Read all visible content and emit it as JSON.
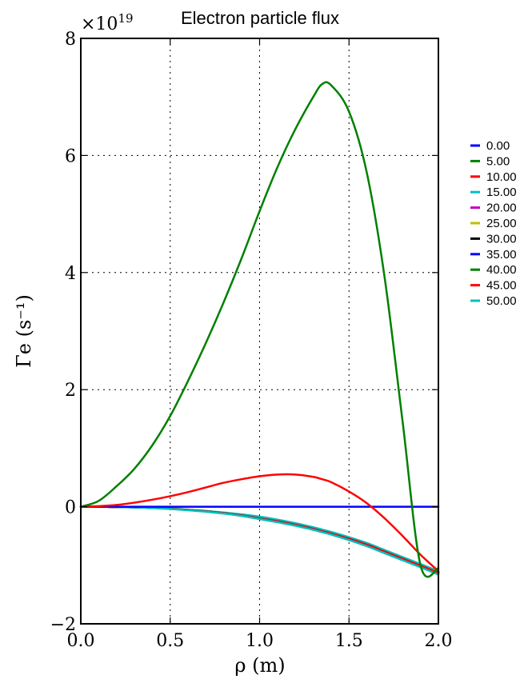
{
  "chart_data": {
    "type": "line",
    "title": "Electron particle flux",
    "xlabel": "ρ (m)",
    "ylabel": "Γe (s⁻¹)",
    "y_scale_factor": "×10",
    "y_scale_exponent": "19",
    "xlim": [
      0,
      2
    ],
    "ylim": [
      -2,
      8
    ],
    "x_ticks": [
      "0.0",
      "0.5",
      "1.0",
      "1.5",
      "2.0"
    ],
    "y_ticks": [
      "−2",
      "0",
      "2",
      "4",
      "6",
      "8"
    ],
    "grid": true,
    "legend_position": "outside-right",
    "x": [
      0,
      0.1,
      0.2,
      0.3,
      0.4,
      0.5,
      0.6,
      0.7,
      0.8,
      0.9,
      1.0,
      1.1,
      1.2,
      1.3,
      1.35,
      1.4,
      1.5,
      1.6,
      1.7,
      1.8,
      1.9,
      2.0
    ],
    "series": [
      {
        "name": "0.00",
        "color": "#0000ff",
        "values": [
          0,
          0,
          0,
          0,
          0,
          0,
          0,
          0,
          0,
          0,
          0,
          0,
          0,
          0,
          0,
          0,
          0,
          0,
          0,
          0,
          0,
          0
        ]
      },
      {
        "name": "5.00",
        "color": "#008000",
        "values": [
          0,
          0.1,
          0.35,
          0.65,
          1.05,
          1.55,
          2.15,
          2.8,
          3.5,
          4.25,
          5.05,
          5.8,
          6.45,
          7.0,
          7.22,
          7.2,
          6.75,
          5.7,
          3.9,
          1.45,
          -1.0,
          -1.05
        ]
      },
      {
        "name": "10.00",
        "color": "#ff0000",
        "values": [
          0,
          0.01,
          0.03,
          0.07,
          0.12,
          0.18,
          0.25,
          0.33,
          0.41,
          0.47,
          0.52,
          0.55,
          0.55,
          0.51,
          0.47,
          0.42,
          0.26,
          0.06,
          -0.2,
          -0.5,
          -0.82,
          -1.1
        ]
      },
      {
        "name": "15.00",
        "color": "#00bfbf",
        "values": [
          0,
          0,
          -0.005,
          -0.01,
          -0.02,
          -0.03,
          -0.05,
          -0.07,
          -0.1,
          -0.13,
          -0.17,
          -0.22,
          -0.28,
          -0.35,
          -0.39,
          -0.43,
          -0.52,
          -0.62,
          -0.74,
          -0.86,
          -0.98,
          -1.1
        ]
      },
      {
        "name": "20.00",
        "color": "#bf00bf",
        "values": [
          0,
          0,
          -0.005,
          -0.01,
          -0.02,
          -0.035,
          -0.055,
          -0.08,
          -0.11,
          -0.15,
          -0.2,
          -0.25,
          -0.31,
          -0.38,
          -0.42,
          -0.46,
          -0.55,
          -0.65,
          -0.77,
          -0.89,
          -1.01,
          -1.12
        ]
      },
      {
        "name": "25.00",
        "color": "#bfbf00",
        "values": [
          0,
          0,
          -0.005,
          -0.01,
          -0.02,
          -0.035,
          -0.055,
          -0.08,
          -0.11,
          -0.15,
          -0.2,
          -0.25,
          -0.31,
          -0.38,
          -0.42,
          -0.46,
          -0.55,
          -0.65,
          -0.77,
          -0.89,
          -1.01,
          -1.12
        ]
      },
      {
        "name": "30.00",
        "color": "#000000",
        "values": [
          0,
          0,
          -0.005,
          -0.01,
          -0.02,
          -0.035,
          -0.055,
          -0.08,
          -0.11,
          -0.15,
          -0.2,
          -0.25,
          -0.31,
          -0.38,
          -0.42,
          -0.46,
          -0.55,
          -0.65,
          -0.77,
          -0.89,
          -1.01,
          -1.13
        ]
      },
      {
        "name": "35.00",
        "color": "#0000ff",
        "values": [
          0,
          0,
          -0.005,
          -0.01,
          -0.02,
          -0.035,
          -0.055,
          -0.08,
          -0.11,
          -0.15,
          -0.2,
          -0.25,
          -0.31,
          -0.38,
          -0.42,
          -0.46,
          -0.55,
          -0.65,
          -0.77,
          -0.89,
          -1.01,
          -1.13
        ]
      },
      {
        "name": "40.00",
        "color": "#008000",
        "values": [
          0,
          0,
          -0.005,
          -0.01,
          -0.02,
          -0.035,
          -0.055,
          -0.08,
          -0.11,
          -0.15,
          -0.2,
          -0.25,
          -0.31,
          -0.38,
          -0.42,
          -0.46,
          -0.55,
          -0.65,
          -0.77,
          -0.89,
          -1.01,
          -1.13
        ]
      },
      {
        "name": "45.00",
        "color": "#ff0000",
        "values": [
          0,
          0,
          -0.005,
          -0.01,
          -0.02,
          -0.035,
          -0.055,
          -0.08,
          -0.11,
          -0.15,
          -0.2,
          -0.25,
          -0.31,
          -0.38,
          -0.42,
          -0.46,
          -0.55,
          -0.65,
          -0.77,
          -0.89,
          -1.01,
          -1.13
        ]
      },
      {
        "name": "50.00",
        "color": "#00bfbf",
        "values": [
          0,
          0,
          -0.005,
          -0.012,
          -0.022,
          -0.038,
          -0.06,
          -0.085,
          -0.117,
          -0.158,
          -0.21,
          -0.265,
          -0.325,
          -0.395,
          -0.435,
          -0.475,
          -0.57,
          -0.675,
          -0.795,
          -0.915,
          -1.035,
          -1.16
        ]
      }
    ]
  }
}
